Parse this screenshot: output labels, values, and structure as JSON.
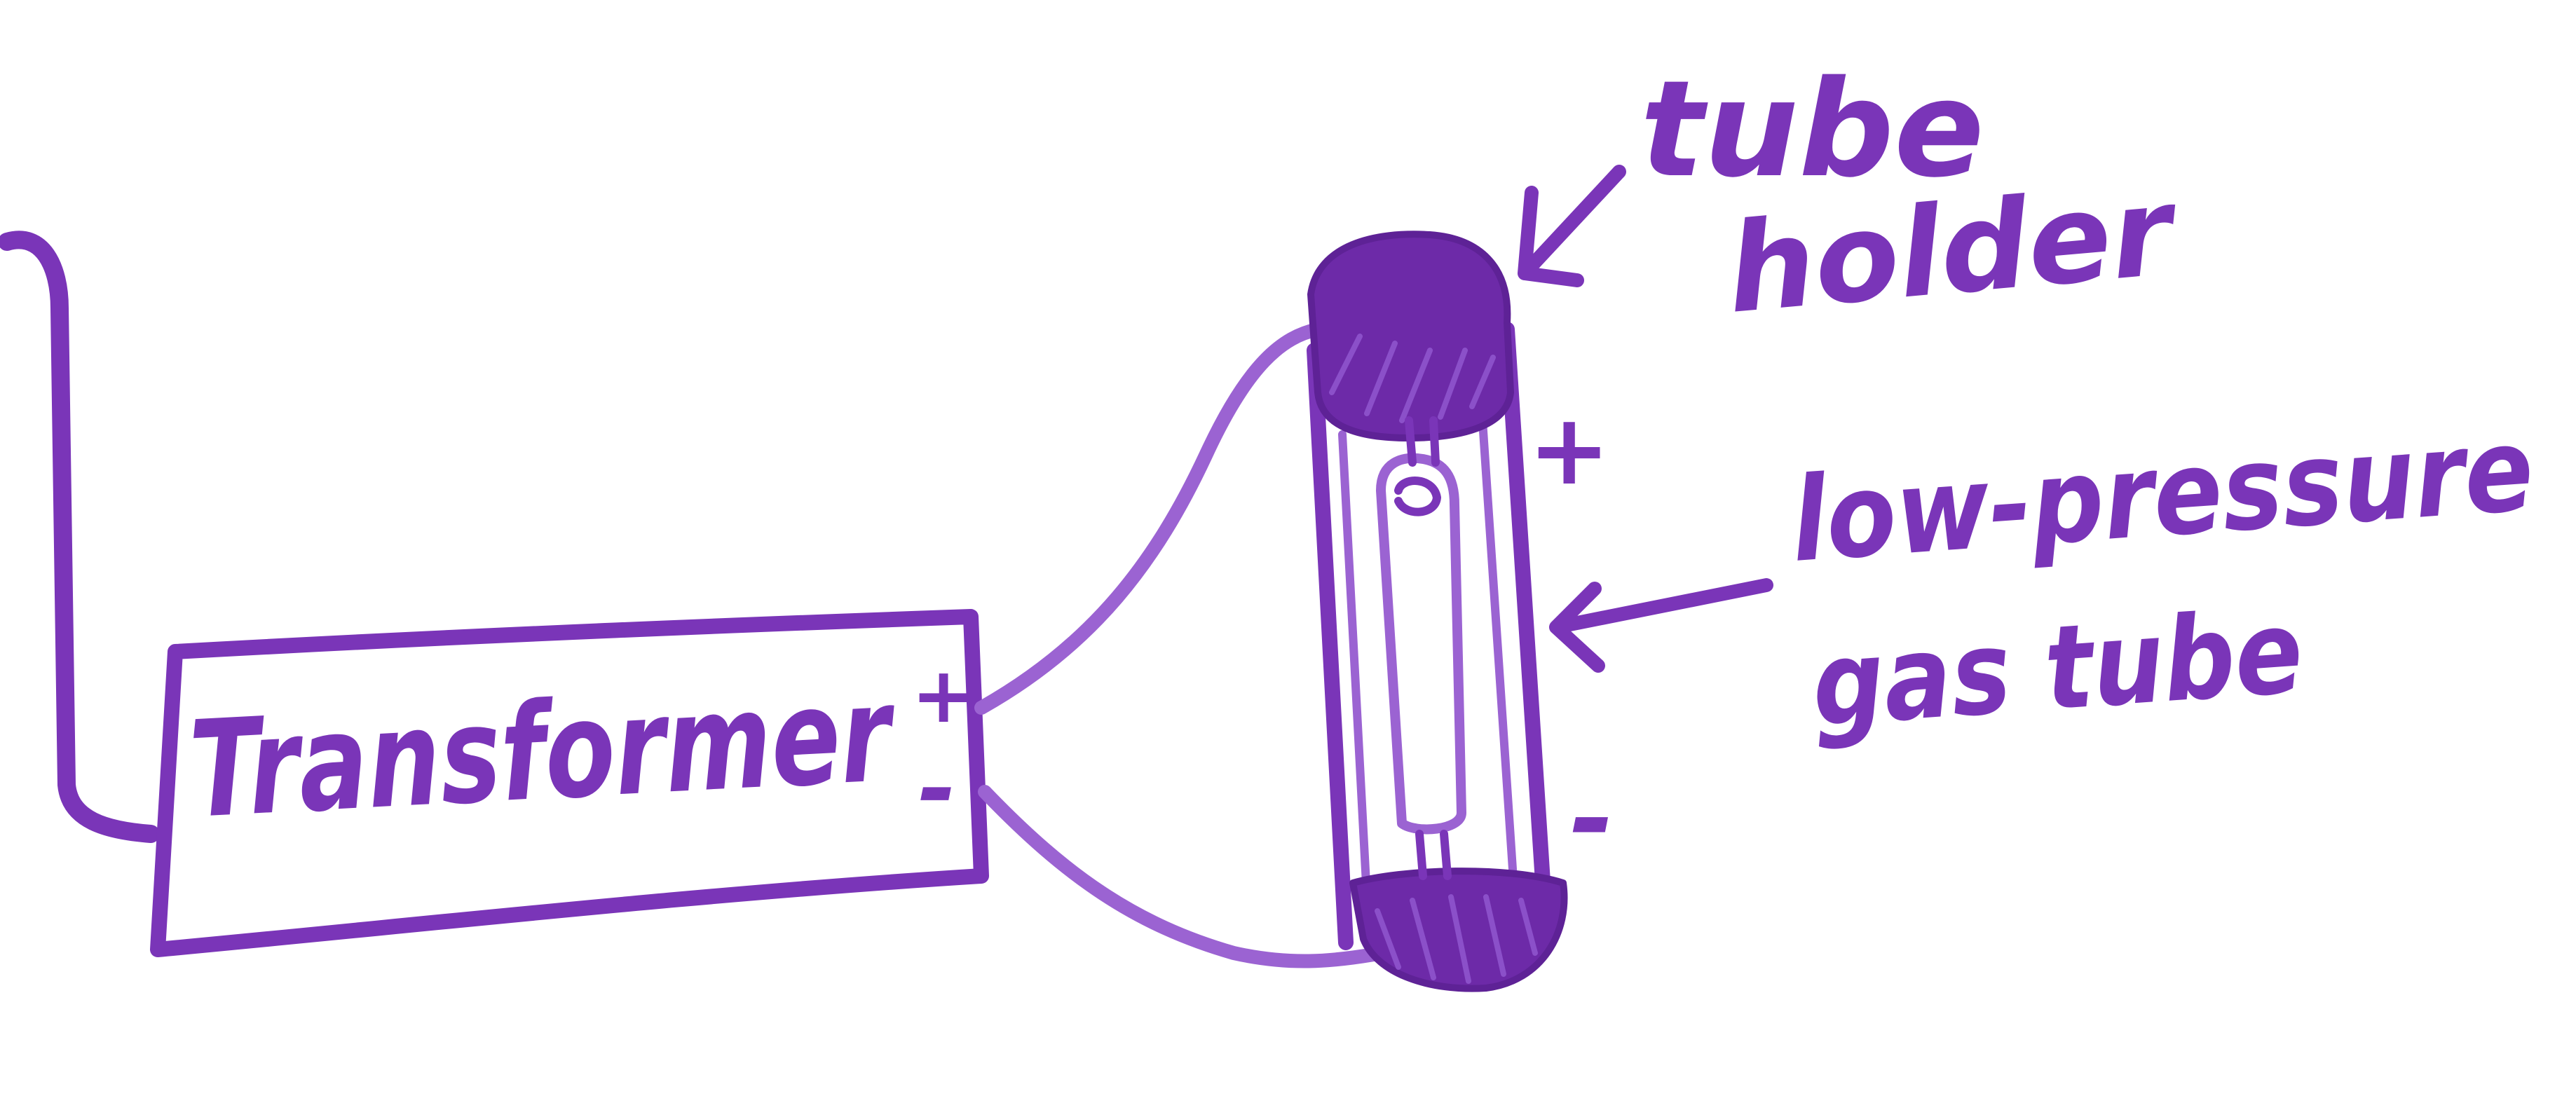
{
  "labels": {
    "transformer": "Transformer",
    "transformer_plus": "+",
    "transformer_minus": "-",
    "tube_holder_line1": "tube",
    "tube_holder_line2": "holder",
    "gas_tube_line1": "low-pressure",
    "gas_tube_line2": "gas tube",
    "tube_plus": "+",
    "tube_minus": "-"
  },
  "colors": {
    "ink": "#7a35b8",
    "ink_dark": "#6d2aa8",
    "background": "#ffffff"
  }
}
